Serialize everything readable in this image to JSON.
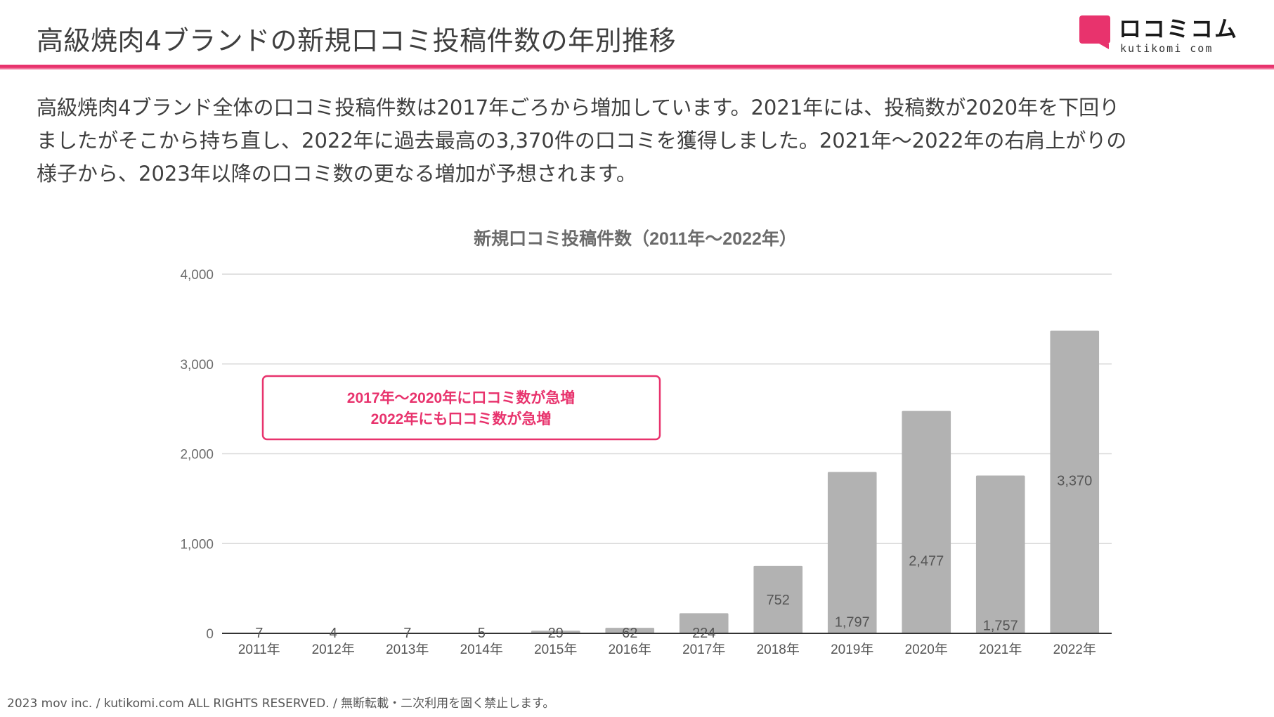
{
  "header": {
    "title": "高級焼肉4ブランドの新規口コミ投稿件数の年別推移"
  },
  "logo": {
    "main": "ロコミコム",
    "sub": "kutikomi com"
  },
  "intro": [
    "高級焼肉4ブランド全体の口コミ投稿件数は2017年ごろから増加しています。2021年には、投稿数が2020年を下回り",
    "ましたがそこから持ち直し、2022年に過去最高の3,370件の口コミを獲得しました。2021年～2022年の右肩上がりの",
    "様子から、2023年以降の口コミ数の更なる増加が予想されます。"
  ],
  "chart_data": {
    "type": "bar",
    "title": "新規口コミ投稿件数（2011年～2022年）",
    "categories": [
      "2011年",
      "2012年",
      "2013年",
      "2014年",
      "2015年",
      "2016年",
      "2017年",
      "2018年",
      "2019年",
      "2020年",
      "2021年",
      "2022年"
    ],
    "values": [
      7,
      4,
      7,
      5,
      29,
      62,
      224,
      752,
      1797,
      2477,
      1757,
      3370
    ],
    "value_labels": [
      "7",
      "4",
      "7",
      "5",
      "29",
      "62",
      "224",
      "752",
      "1,797",
      "2,477",
      "1,757",
      "3,370"
    ],
    "ylim": [
      0,
      4000
    ],
    "yticks": [
      0,
      1000,
      2000,
      3000,
      4000
    ],
    "ytick_labels": [
      "0",
      "1,000",
      "2,000",
      "3,000",
      "4,000"
    ],
    "grid": true,
    "bar_color": "#b2b2b2",
    "annotation": {
      "lines": [
        "2017年～2020年に口コミ数が急増",
        "2022年にも口コミ数が急増"
      ],
      "color": "#e8336d"
    }
  },
  "footer": {
    "text": "2023 mov inc. / kutikomi.com ALL RIGHTS RESERVED. / 無断転載・二次利用を固く禁止します。"
  },
  "colors": {
    "accent": "#e8336d",
    "text": "#3f3f3f",
    "grid": "#d9d9d9",
    "bar": "#b2b2b2"
  }
}
